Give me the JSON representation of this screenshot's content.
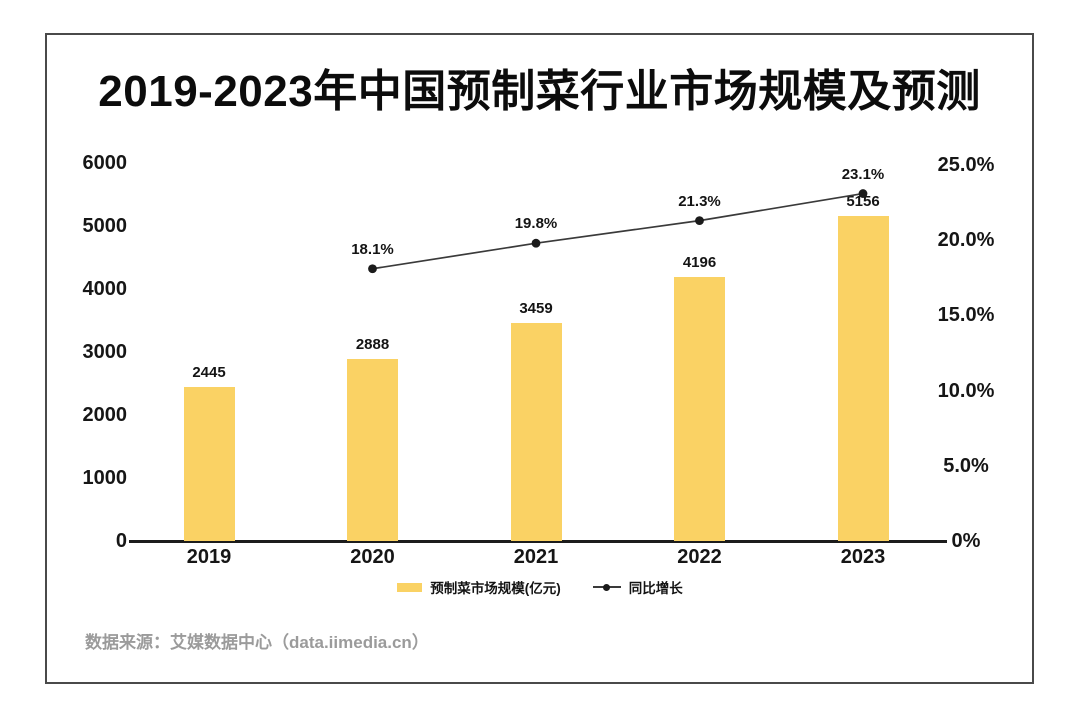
{
  "page": {
    "title": "2019-2023年中国预制菜行业市场规模及预测",
    "source": "数据来源：艾媒数据中心（data.iimedia.cn）"
  },
  "legend": {
    "bar_label": "预制菜市场规模(亿元)",
    "line_label": "同比增长"
  },
  "colors": {
    "bar": "#FAD264",
    "line": "#3a3a3a",
    "dot": "#1b1b1b",
    "axis_text": "#161616",
    "axis_line": "#1c1c1c",
    "source_text": "#9b9b9b",
    "card_border": "#4a4a4a",
    "background": "#ffffff"
  },
  "chart_data": {
    "type": "bar+line",
    "title": "2019-2023年中国预制菜行业市场规模及预测",
    "categories": [
      "2019",
      "2020",
      "2021",
      "2022",
      "2023"
    ],
    "series": [
      {
        "name": "预制菜市场规模(亿元)",
        "type": "bar",
        "axis": "left",
        "values": [
          2445,
          2888,
          3459,
          4196,
          5156
        ],
        "color": "#FAD264"
      },
      {
        "name": "同比增长",
        "type": "line",
        "axis": "right",
        "values": [
          null,
          18.1,
          19.8,
          21.3,
          23.1
        ],
        "unit": "%",
        "labels": [
          "",
          "18.1%",
          "19.8%",
          "21.3%",
          "23.1%"
        ],
        "color": "#3a3a3a"
      }
    ],
    "left_axis": {
      "min": 0,
      "max": 6000,
      "ticks": [
        0,
        1000,
        2000,
        3000,
        4000,
        5000,
        6000
      ],
      "tick_labels": [
        "0",
        "1000",
        "2000",
        "3000",
        "4000",
        "5000",
        "6000"
      ]
    },
    "right_axis": {
      "min": 0,
      "max": 25,
      "ticks": [
        0,
        5,
        10,
        15,
        20,
        25
      ],
      "tick_labels": [
        "0%",
        "5.0%",
        "10.0%",
        "15.0%",
        "20.0%",
        "25.0%"
      ]
    },
    "grid": false,
    "legend_position": "bottom",
    "source": "数据来源：艾媒数据中心（data.iimedia.cn）"
  }
}
